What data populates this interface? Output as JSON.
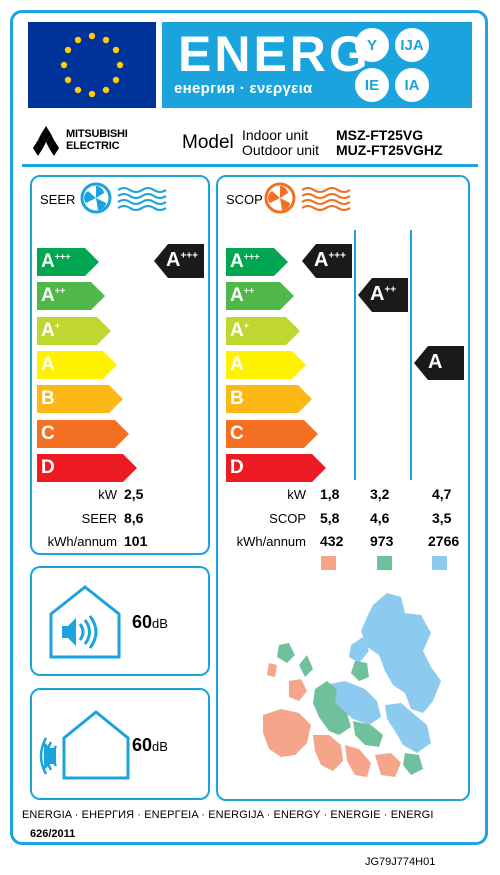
{
  "header": {
    "brand_word": "ENERG",
    "subtitle": "енергия · ενεργεια",
    "lang_badges": [
      "Y",
      "IJA",
      "IE",
      "IA"
    ]
  },
  "supplier": {
    "name_line1": "MITSUBISHI",
    "name_line2": "ELECTRIC",
    "model_label": "Model",
    "indoor_label": "Indoor unit",
    "outdoor_label": "Outdoor unit",
    "indoor_model": "MSZ-FT25VG",
    "outdoor_model": "MUZ-FT25VGHZ"
  },
  "scale": [
    {
      "letter": "A",
      "sup": "+++",
      "color": "#00a650"
    },
    {
      "letter": "A",
      "sup": "++",
      "color": "#50b848"
    },
    {
      "letter": "A",
      "sup": "+",
      "color": "#bfd730"
    },
    {
      "letter": "A",
      "sup": "",
      "color": "#fff200"
    },
    {
      "letter": "B",
      "sup": "",
      "color": "#fcb814"
    },
    {
      "letter": "C",
      "sup": "",
      "color": "#f36f21"
    },
    {
      "letter": "D",
      "sup": "",
      "color": "#ed1c24"
    }
  ],
  "cooling": {
    "title": "SEER",
    "class_letter": "A",
    "class_sup": "+++",
    "labels": [
      "kW",
      "SEER",
      "kWh/annum"
    ],
    "values": [
      "2,5",
      "8,6",
      "101"
    ]
  },
  "heating": {
    "title": "SCOP",
    "classes": [
      {
        "letter": "A",
        "sup": "+++"
      },
      {
        "letter": "A",
        "sup": "++"
      },
      {
        "letter": "A",
        "sup": ""
      }
    ],
    "labels": [
      "kW",
      "SCOP",
      "kWh/annum"
    ],
    "columns": [
      {
        "values": [
          "1,8",
          "5,8",
          "432"
        ],
        "color": "#f4a58a"
      },
      {
        "values": [
          "3,2",
          "4,6",
          "973"
        ],
        "color": "#6fc19b"
      },
      {
        "values": [
          "4,7",
          "3,5",
          "2766"
        ],
        "color": "#8ccbef"
      }
    ]
  },
  "noise": {
    "indoor_value": "60",
    "outdoor_value": "60",
    "unit": "dB"
  },
  "footer": {
    "languages": "ENERGIA · ЕНЕРГИЯ · ΕΝΕΡΓΕΙΑ · ENERGIJA · ENERGY · ENERGIE · ENERGI",
    "regulation": "626/2011",
    "doc_code": "JG79J774H01"
  },
  "colors": {
    "accent": "#1aa3dd",
    "eu_blue": "#003399",
    "eu_star": "#ffcc00",
    "indicator": "#1a1a1a",
    "cold_fan": "#1aa3dd",
    "warm_fan": "#f36f21"
  }
}
